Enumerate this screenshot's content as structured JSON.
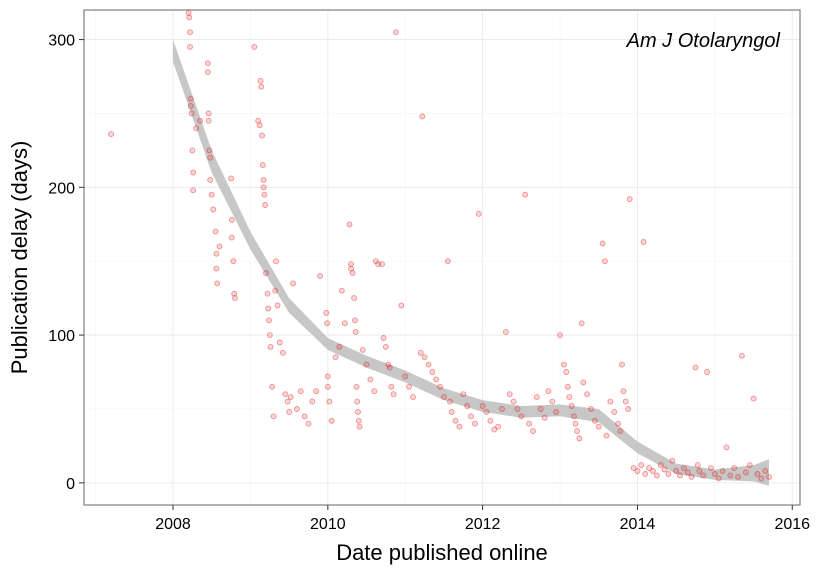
{
  "chart_data": {
    "type": "scatter",
    "title": "",
    "annotation": "Am J Otolaryngol",
    "xlabel": "Date published online",
    "ylabel": "Publication delay (days)",
    "xlim": [
      2006.85,
      2016.1
    ],
    "ylim": [
      -15,
      320
    ],
    "x_ticks": [
      2008,
      2010,
      2012,
      2014,
      2016
    ],
    "x_tick_labels": [
      "2008",
      "2010",
      "2012",
      "2014",
      "2016"
    ],
    "y_ticks": [
      0,
      100,
      200,
      300
    ],
    "y_tick_labels": [
      "0",
      "100",
      "200",
      "300"
    ],
    "grid": true,
    "point_color": "#e41a1c",
    "smooth_band_color": "#bdbdbd",
    "points": [
      [
        2007.2,
        236
      ],
      [
        2008.2,
        318
      ],
      [
        2008.21,
        315
      ],
      [
        2008.22,
        305
      ],
      [
        2008.22,
        295
      ],
      [
        2008.23,
        260
      ],
      [
        2008.23,
        255
      ],
      [
        2008.24,
        250
      ],
      [
        2008.25,
        225
      ],
      [
        2008.26,
        210
      ],
      [
        2008.26,
        198
      ],
      [
        2008.3,
        240
      ],
      [
        2008.35,
        245
      ],
      [
        2008.45,
        284
      ],
      [
        2008.45,
        278
      ],
      [
        2008.46,
        250
      ],
      [
        2008.46,
        245
      ],
      [
        2008.47,
        225
      ],
      [
        2008.48,
        220
      ],
      [
        2008.48,
        205
      ],
      [
        2008.5,
        195
      ],
      [
        2008.52,
        185
      ],
      [
        2008.55,
        170
      ],
      [
        2008.56,
        155
      ],
      [
        2008.56,
        145
      ],
      [
        2008.57,
        135
      ],
      [
        2008.6,
        160
      ],
      [
        2008.75,
        206
      ],
      [
        2008.76,
        178
      ],
      [
        2008.76,
        166
      ],
      [
        2008.78,
        150
      ],
      [
        2008.79,
        128
      ],
      [
        2008.8,
        125
      ],
      [
        2009.05,
        295
      ],
      [
        2009.1,
        245
      ],
      [
        2009.12,
        242
      ],
      [
        2009.13,
        272
      ],
      [
        2009.14,
        268
      ],
      [
        2009.15,
        235
      ],
      [
        2009.16,
        215
      ],
      [
        2009.17,
        205
      ],
      [
        2009.17,
        200
      ],
      [
        2009.18,
        195
      ],
      [
        2009.19,
        188
      ],
      [
        2009.2,
        142
      ],
      [
        2009.22,
        128
      ],
      [
        2009.23,
        118
      ],
      [
        2009.24,
        110
      ],
      [
        2009.25,
        100
      ],
      [
        2009.26,
        92
      ],
      [
        2009.28,
        65
      ],
      [
        2009.3,
        45
      ],
      [
        2009.32,
        130
      ],
      [
        2009.33,
        150
      ],
      [
        2009.35,
        120
      ],
      [
        2009.38,
        95
      ],
      [
        2009.42,
        88
      ],
      [
        2009.45,
        60
      ],
      [
        2009.48,
        55
      ],
      [
        2009.5,
        48
      ],
      [
        2009.52,
        58
      ],
      [
        2009.55,
        135
      ],
      [
        2009.6,
        50
      ],
      [
        2009.65,
        62
      ],
      [
        2009.7,
        45
      ],
      [
        2009.75,
        40
      ],
      [
        2009.8,
        55
      ],
      [
        2009.85,
        62
      ],
      [
        2009.9,
        140
      ],
      [
        2009.98,
        115
      ],
      [
        2009.99,
        108
      ],
      [
        2010.0,
        72
      ],
      [
        2010.0,
        65
      ],
      [
        2010.02,
        55
      ],
      [
        2010.05,
        42
      ],
      [
        2010.1,
        85
      ],
      [
        2010.15,
        92
      ],
      [
        2010.18,
        130
      ],
      [
        2010.22,
        108
      ],
      [
        2010.28,
        175
      ],
      [
        2010.3,
        148
      ],
      [
        2010.3,
        145
      ],
      [
        2010.32,
        142
      ],
      [
        2010.34,
        125
      ],
      [
        2010.35,
        110
      ],
      [
        2010.36,
        102
      ],
      [
        2010.37,
        65
      ],
      [
        2010.38,
        55
      ],
      [
        2010.39,
        48
      ],
      [
        2010.4,
        42
      ],
      [
        2010.41,
        38
      ],
      [
        2010.45,
        90
      ],
      [
        2010.5,
        80
      ],
      [
        2010.55,
        70
      ],
      [
        2010.6,
        62
      ],
      [
        2010.62,
        150
      ],
      [
        2010.65,
        148
      ],
      [
        2010.7,
        148
      ],
      [
        2010.72,
        98
      ],
      [
        2010.75,
        92
      ],
      [
        2010.78,
        80
      ],
      [
        2010.8,
        78
      ],
      [
        2010.82,
        65
      ],
      [
        2010.85,
        60
      ],
      [
        2010.88,
        305
      ],
      [
        2010.95,
        120
      ],
      [
        2011.0,
        72
      ],
      [
        2011.05,
        65
      ],
      [
        2011.1,
        58
      ],
      [
        2011.2,
        88
      ],
      [
        2011.22,
        248
      ],
      [
        2011.25,
        85
      ],
      [
        2011.3,
        80
      ],
      [
        2011.35,
        75
      ],
      [
        2011.4,
        70
      ],
      [
        2011.45,
        65
      ],
      [
        2011.5,
        58
      ],
      [
        2011.55,
        150
      ],
      [
        2011.58,
        55
      ],
      [
        2011.6,
        48
      ],
      [
        2011.65,
        42
      ],
      [
        2011.7,
        38
      ],
      [
        2011.75,
        60
      ],
      [
        2011.8,
        52
      ],
      [
        2011.85,
        45
      ],
      [
        2011.9,
        40
      ],
      [
        2011.95,
        182
      ],
      [
        2012.0,
        52
      ],
      [
        2012.05,
        48
      ],
      [
        2012.1,
        42
      ],
      [
        2012.15,
        36
      ],
      [
        2012.2,
        38
      ],
      [
        2012.25,
        50
      ],
      [
        2012.3,
        102
      ],
      [
        2012.35,
        60
      ],
      [
        2012.4,
        55
      ],
      [
        2012.45,
        50
      ],
      [
        2012.5,
        45
      ],
      [
        2012.55,
        195
      ],
      [
        2012.6,
        40
      ],
      [
        2012.65,
        35
      ],
      [
        2012.7,
        58
      ],
      [
        2012.75,
        50
      ],
      [
        2012.8,
        44
      ],
      [
        2012.85,
        62
      ],
      [
        2012.9,
        55
      ],
      [
        2012.95,
        48
      ],
      [
        2013.0,
        100
      ],
      [
        2013.05,
        80
      ],
      [
        2013.08,
        75
      ],
      [
        2013.1,
        65
      ],
      [
        2013.12,
        58
      ],
      [
        2013.15,
        52
      ],
      [
        2013.18,
        45
      ],
      [
        2013.2,
        40
      ],
      [
        2013.22,
        35
      ],
      [
        2013.25,
        30
      ],
      [
        2013.28,
        108
      ],
      [
        2013.3,
        68
      ],
      [
        2013.35,
        60
      ],
      [
        2013.4,
        50
      ],
      [
        2013.45,
        42
      ],
      [
        2013.5,
        38
      ],
      [
        2013.55,
        162
      ],
      [
        2013.58,
        150
      ],
      [
        2013.6,
        32
      ],
      [
        2013.65,
        55
      ],
      [
        2013.7,
        48
      ],
      [
        2013.75,
        40
      ],
      [
        2013.78,
        35
      ],
      [
        2013.8,
        80
      ],
      [
        2013.82,
        62
      ],
      [
        2013.85,
        55
      ],
      [
        2013.88,
        50
      ],
      [
        2013.9,
        192
      ],
      [
        2013.95,
        10
      ],
      [
        2014.0,
        8
      ],
      [
        2014.05,
        12
      ],
      [
        2014.08,
        163
      ],
      [
        2014.1,
        6
      ],
      [
        2014.15,
        10
      ],
      [
        2014.2,
        8
      ],
      [
        2014.25,
        5
      ],
      [
        2014.3,
        12
      ],
      [
        2014.35,
        9
      ],
      [
        2014.4,
        6
      ],
      [
        2014.45,
        15
      ],
      [
        2014.5,
        8
      ],
      [
        2014.55,
        5
      ],
      [
        2014.6,
        10
      ],
      [
        2014.65,
        7
      ],
      [
        2014.7,
        4
      ],
      [
        2014.75,
        78
      ],
      [
        2014.78,
        12
      ],
      [
        2014.8,
        8
      ],
      [
        2014.85,
        5
      ],
      [
        2014.9,
        75
      ],
      [
        2014.95,
        10
      ],
      [
        2015.0,
        6
      ],
      [
        2015.05,
        3
      ],
      [
        2015.1,
        8
      ],
      [
        2015.15,
        24
      ],
      [
        2015.2,
        5
      ],
      [
        2015.25,
        10
      ],
      [
        2015.3,
        4
      ],
      [
        2015.35,
        86
      ],
      [
        2015.4,
        7
      ],
      [
        2015.45,
        12
      ],
      [
        2015.5,
        57
      ],
      [
        2015.55,
        6
      ],
      [
        2015.6,
        3
      ],
      [
        2015.65,
        8
      ],
      [
        2015.7,
        4
      ]
    ],
    "smooth_band_upper": [
      [
        2008.0,
        300
      ],
      [
        2008.5,
        225
      ],
      [
        2009.0,
        170
      ],
      [
        2009.5,
        125
      ],
      [
        2010.0,
        98
      ],
      [
        2010.5,
        86
      ],
      [
        2011.0,
        76
      ],
      [
        2011.5,
        64
      ],
      [
        2012.0,
        56
      ],
      [
        2012.5,
        52
      ],
      [
        2013.0,
        53
      ],
      [
        2013.5,
        50
      ],
      [
        2014.0,
        28
      ],
      [
        2014.5,
        13
      ],
      [
        2015.0,
        9
      ],
      [
        2015.5,
        12
      ],
      [
        2015.7,
        16
      ]
    ],
    "smooth_band_lower": [
      [
        2008.0,
        285
      ],
      [
        2008.5,
        210
      ],
      [
        2009.0,
        158
      ],
      [
        2009.5,
        115
      ],
      [
        2010.0,
        90
      ],
      [
        2010.5,
        78
      ],
      [
        2011.0,
        68
      ],
      [
        2011.5,
        56
      ],
      [
        2012.0,
        48
      ],
      [
        2012.5,
        44
      ],
      [
        2013.0,
        45
      ],
      [
        2013.5,
        41
      ],
      [
        2014.0,
        20
      ],
      [
        2014.5,
        6
      ],
      [
        2015.0,
        2
      ],
      [
        2015.5,
        1
      ],
      [
        2015.7,
        -2
      ]
    ]
  }
}
